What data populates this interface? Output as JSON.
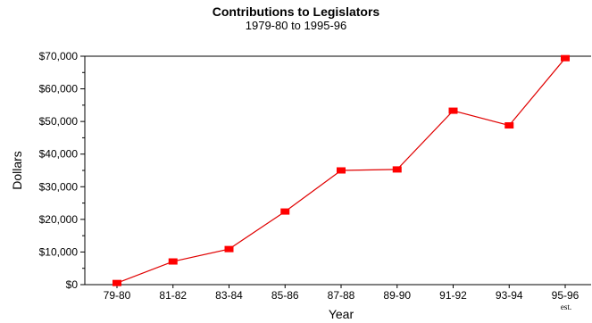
{
  "chart_data": {
    "type": "line",
    "title": "Contributions to Legislators",
    "subtitle": "1979-80 to 1995-96",
    "xlabel": "Year",
    "ylabel": "Dollars",
    "categories": [
      "79-80",
      "81-82",
      "83-84",
      "85-86",
      "87-88",
      "89-90",
      "91-92",
      "93-94",
      "95-96"
    ],
    "category_notes": [
      "",
      "",
      "",
      "",
      "",
      "",
      "",
      "",
      "est."
    ],
    "series": [
      {
        "values": [
          500,
          7100,
          10900,
          22400,
          35000,
          35300,
          53300,
          48800,
          69400
        ]
      }
    ],
    "ylim": [
      0,
      70000
    ],
    "yticks": [
      0,
      10000,
      20000,
      30000,
      40000,
      50000,
      60000,
      70000
    ],
    "ytick_labels": [
      "$0",
      "$10,000",
      "$20,000",
      "$30,000",
      "$40,000",
      "$50,000",
      "$60,000",
      "$70,000"
    ],
    "grid": false,
    "line_color": "#e00000",
    "marker_color": "#ff0000"
  }
}
